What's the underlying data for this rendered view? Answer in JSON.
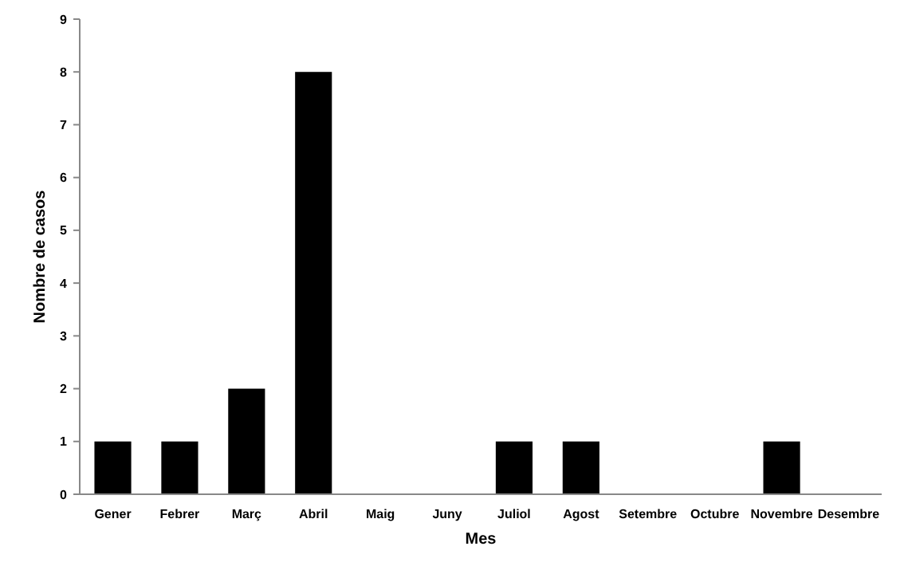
{
  "chart_data": {
    "type": "bar",
    "xlabel": "Mes",
    "ylabel": "Nombre de casos",
    "categories": [
      "Gener",
      "Febrer",
      "Març",
      "Abril",
      "Maig",
      "Juny",
      "Juliol",
      "Agost",
      "Setembre",
      "Octubre",
      "Novembre",
      "Desembre"
    ],
    "values": [
      1,
      1,
      2,
      8,
      0,
      0,
      1,
      1,
      0,
      0,
      1,
      0
    ],
    "color": "#000000",
    "ylim": [
      0,
      9
    ],
    "yticks": [
      0,
      1,
      2,
      3,
      4,
      5,
      6,
      7,
      8,
      9
    ],
    "grid": false
  }
}
